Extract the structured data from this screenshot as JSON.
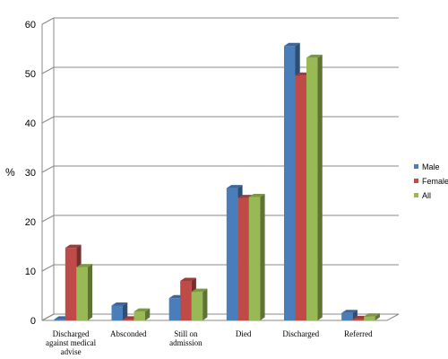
{
  "chart_data": {
    "type": "bar",
    "ylabel": "%",
    "ylim": [
      0,
      60
    ],
    "yticks": [
      0,
      10,
      20,
      30,
      40,
      50,
      60
    ],
    "grid": true,
    "legend_position": "right",
    "categories": [
      "Discharged against medical advise",
      "Absconded",
      "Still on admission",
      "Died",
      "Discharged",
      "Referred"
    ],
    "category_lines": [
      [
        "Discharged",
        "against medical",
        "advise"
      ],
      [
        "Absconded"
      ],
      [
        "Still on",
        "admission"
      ],
      [
        "Died"
      ],
      [
        "Discharged"
      ],
      [
        "Referred"
      ]
    ],
    "series": [
      {
        "name": "Male",
        "color": "#4a7ebb",
        "values": [
          0.2,
          3,
          4.5,
          26.8,
          55.6,
          1.5
        ]
      },
      {
        "name": "Female",
        "color": "#be4b48",
        "values": [
          14.7,
          0.2,
          8,
          24.8,
          49.6,
          0.3
        ]
      },
      {
        "name": "All",
        "color": "#98b954",
        "values": [
          10.8,
          1.8,
          5.8,
          25,
          53.2,
          0.8
        ]
      }
    ]
  }
}
